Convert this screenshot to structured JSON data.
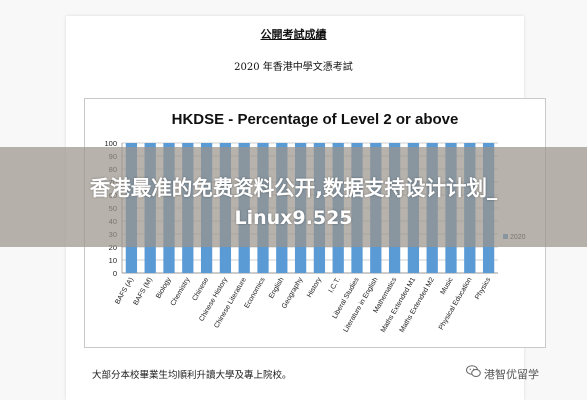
{
  "document": {
    "heading": "公開考試成績",
    "subheading": "2020 年香港中學文憑考試",
    "footnote": "大部分本校畢業生均順利升讀大學及專上院校。"
  },
  "banner": {
    "line1": "香港最准的免费资料公开,数据支持设计计划_",
    "line2": "Linux9.525"
  },
  "watermark": {
    "text": "港智优留学",
    "icon": "wechat-icon"
  },
  "colors": {
    "bar": "#5b9bd5",
    "grid": "#bfbfbf",
    "banner_overlay": "#9b948c"
  },
  "chart_data": {
    "type": "bar",
    "title": "HKDSE - Percentage of Level 2 or above",
    "categories": [
      "BAFS (A)",
      "BAFS (M)",
      "Biology",
      "Chemistry",
      "Chinese",
      "Chinese History",
      "Chinese Literature",
      "Economics",
      "English",
      "Geography",
      "History",
      "I.C.T.",
      "Liberal Studies",
      "Literature in English",
      "Mathematics",
      "Maths Extended M1",
      "Maths Extended M2",
      "Music",
      "Physical Education",
      "Physics"
    ],
    "series": [
      {
        "name": "2020",
        "values": [
          100,
          100,
          100,
          100,
          100,
          100,
          100,
          100,
          100,
          100,
          100,
          100,
          100,
          100,
          100,
          100,
          100,
          100,
          100,
          100
        ]
      }
    ],
    "yticks": [
      0,
      10,
      20,
      30,
      40,
      50,
      60,
      70,
      80,
      90,
      100
    ],
    "ylim": [
      0,
      100
    ],
    "grid": true,
    "legend_position": "right"
  }
}
